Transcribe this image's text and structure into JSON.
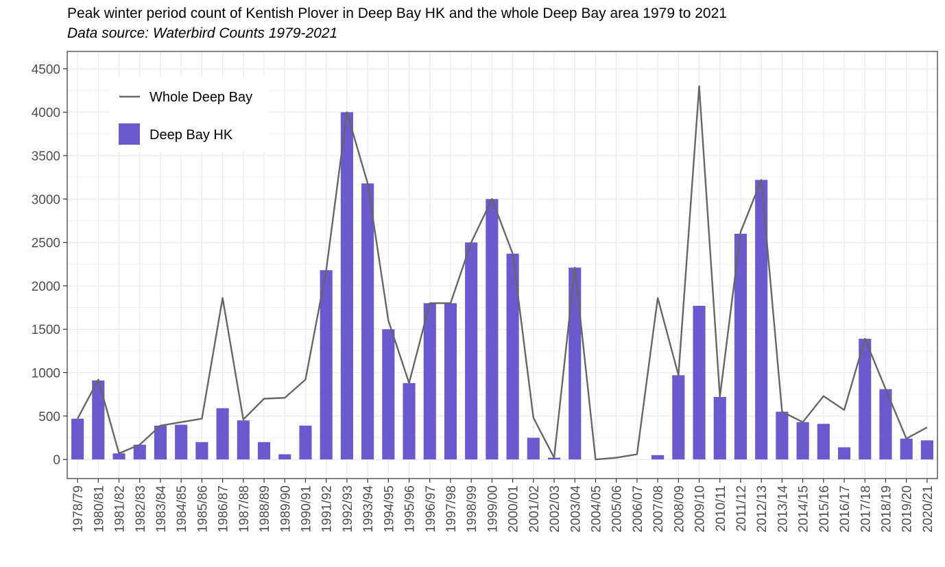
{
  "chart_data": {
    "type": "bar",
    "title": "Peak winter period count of Kentish Plover in Deep Bay HK and the whole Deep Bay area 1979 to 2021",
    "subtitle": "Data source: Waterbird Counts 1979-2021",
    "xlabel": "",
    "ylabel": "",
    "ylim": [
      0,
      4700
    ],
    "yticks": [
      0,
      500,
      1000,
      1500,
      2000,
      2500,
      3000,
      3500,
      4000,
      4500
    ],
    "grid": true,
    "legend_position": "top-left",
    "categories": [
      "1978/79",
      "1980/81",
      "1981/82",
      "1982/83",
      "1983/84",
      "1984/85",
      "1985/86",
      "1986/87",
      "1987/88",
      "1988/89",
      "1989/90",
      "1990/91",
      "1991/92",
      "1992/93",
      "1993/94",
      "1994/95",
      "1995/96",
      "1996/97",
      "1997/98",
      "1998/99",
      "1999/00",
      "2000/01",
      "2001/02",
      "2002/03",
      "2003/04",
      "2004/05",
      "2005/06",
      "2006/07",
      "2007/08",
      "2008/09",
      "2009/10",
      "2010/11",
      "2011/12",
      "2012/13",
      "2013/14",
      "2014/15",
      "2015/16",
      "2016/17",
      "2017/18",
      "2018/19",
      "2019/20",
      "2020/21"
    ],
    "series": [
      {
        "name": "Deep Bay HK",
        "kind": "bar",
        "color": "#6a5acd",
        "values": [
          470,
          910,
          70,
          170,
          390,
          400,
          200,
          590,
          450,
          200,
          60,
          390,
          2180,
          4000,
          3180,
          1500,
          880,
          1800,
          1800,
          2500,
          3000,
          2370,
          250,
          20,
          2210,
          0,
          0,
          0,
          50,
          970,
          1770,
          720,
          2600,
          3220,
          550,
          430,
          410,
          140,
          1390,
          810,
          240,
          220
        ]
      },
      {
        "name": "Whole Deep Bay",
        "kind": "line",
        "color": "#666666",
        "values": [
          470,
          920,
          70,
          170,
          390,
          430,
          470,
          1860,
          460,
          700,
          710,
          920,
          2180,
          4000,
          3180,
          1600,
          880,
          1800,
          1800,
          2500,
          3000,
          2370,
          480,
          20,
          2210,
          0,
          20,
          60,
          1860,
          970,
          4300,
          720,
          2620,
          3220,
          550,
          430,
          730,
          570,
          1390,
          810,
          240,
          370
        ]
      }
    ]
  }
}
